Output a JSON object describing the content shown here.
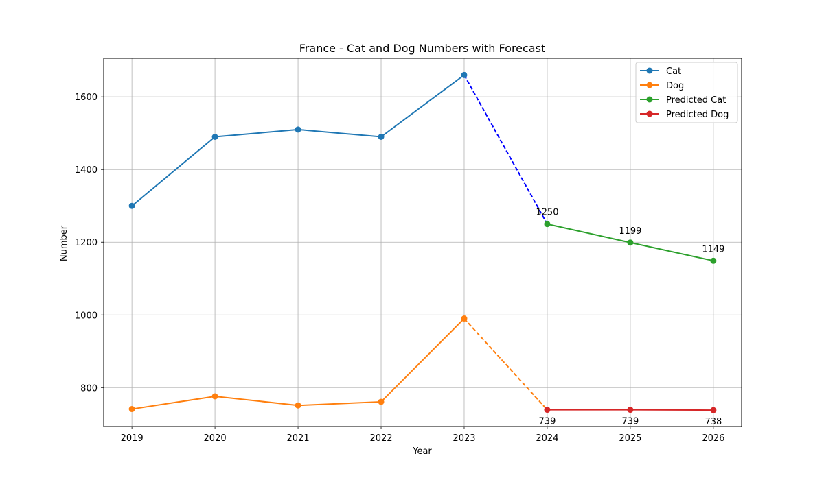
{
  "chart_data": {
    "type": "line",
    "title": "France - Cat and Dog Numbers with Forecast",
    "xlabel": "Year",
    "ylabel": "Number",
    "xlim": [
      2018.66,
      2026.34
    ],
    "ylim": [
      693,
      1706
    ],
    "grid": true,
    "legend_position": "top-right",
    "x_ticks": [
      2019,
      2020,
      2021,
      2022,
      2023,
      2024,
      2025,
      2026
    ],
    "y_ticks": [
      800,
      1000,
      1200,
      1400,
      1600
    ],
    "series": [
      {
        "name": "Cat",
        "color": "#1f77b4",
        "style": "solid",
        "x": [
          2019,
          2020,
          2021,
          2022,
          2023
        ],
        "y": [
          1300,
          1490,
          1510,
          1490,
          1660
        ]
      },
      {
        "name": "Dog",
        "color": "#ff7f0e",
        "style": "solid",
        "x": [
          2019,
          2020,
          2021,
          2022,
          2023
        ],
        "y": [
          741,
          776,
          751,
          761,
          990
        ]
      },
      {
        "name": "Predicted Cat",
        "color": "#2ca02c",
        "style": "solid",
        "x": [
          2024,
          2025,
          2026
        ],
        "y": [
          1250,
          1199,
          1149
        ],
        "labels": [
          "1250",
          "1199",
          "1149"
        ],
        "label_position": "above"
      },
      {
        "name": "Predicted Dog",
        "color": "#d62728",
        "style": "solid",
        "x": [
          2024,
          2025,
          2026
        ],
        "y": [
          739,
          739,
          738
        ],
        "labels": [
          "739",
          "739",
          "738"
        ],
        "label_position": "below"
      }
    ],
    "connectors": [
      {
        "color": "#0000ff",
        "style": "dashed",
        "x": [
          2023,
          2024
        ],
        "y": [
          1660,
          1250
        ]
      },
      {
        "color": "#ff7f0e",
        "style": "dashed",
        "x": [
          2023,
          2024
        ],
        "y": [
          990,
          739
        ]
      }
    ]
  }
}
